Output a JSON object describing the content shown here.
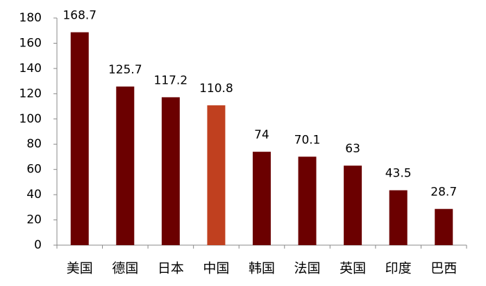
{
  "chart_data": {
    "type": "bar",
    "categories": [
      "美国",
      "德国",
      "日本",
      "中国",
      "韩国",
      "法国",
      "英国",
      "印度",
      "巴西"
    ],
    "values": [
      168.7,
      125.7,
      117.2,
      110.8,
      74,
      70.1,
      63,
      43.5,
      28.7
    ],
    "colors": [
      "#6b0000",
      "#6b0000",
      "#6b0000",
      "#c0401f",
      "#6b0000",
      "#6b0000",
      "#6b0000",
      "#6b0000",
      "#6b0000"
    ],
    "ylim": [
      0,
      180
    ],
    "yticks": [
      0,
      20,
      40,
      60,
      80,
      100,
      120,
      140,
      160,
      180
    ],
    "grid": false
  }
}
